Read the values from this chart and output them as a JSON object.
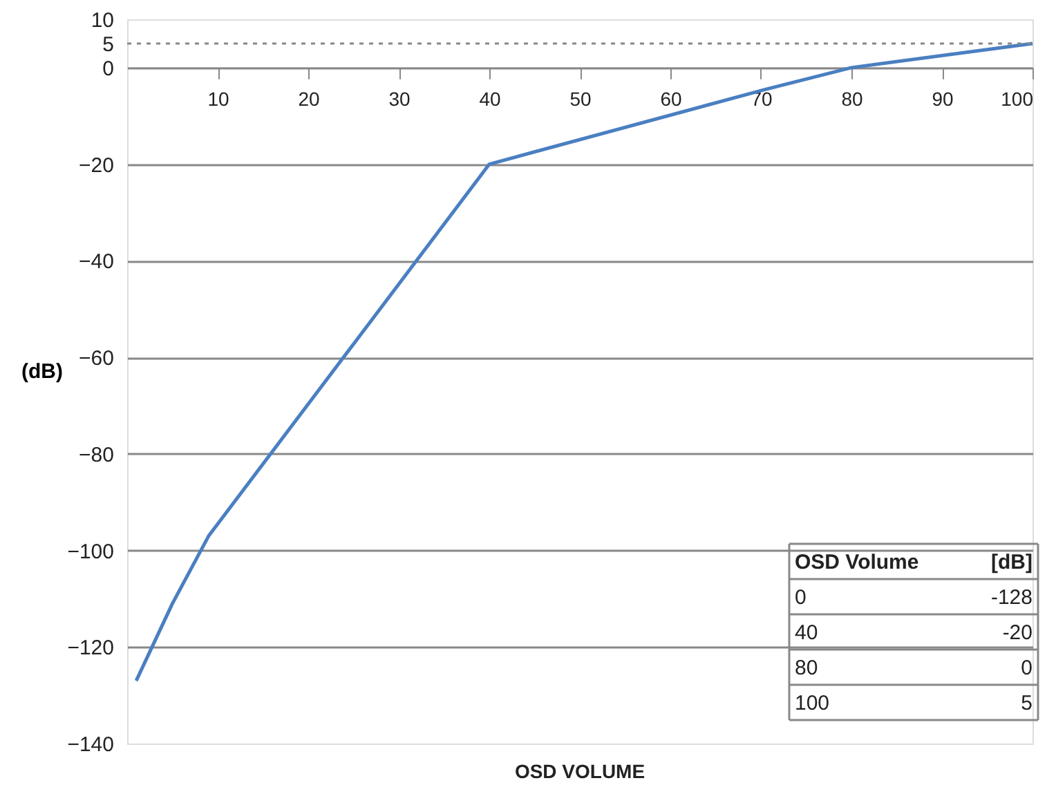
{
  "chart_data": {
    "type": "line",
    "xlabel": "OSD VOLUME",
    "ylabel": "(dB)",
    "x": [
      1,
      5,
      9,
      40,
      70.5,
      80,
      100
    ],
    "series": [
      {
        "color": "#4a7fc1",
        "values": [
          -127,
          -111,
          -97,
          -20,
          -4.5,
          0,
          5
        ]
      }
    ],
    "xlim": [
      0,
      100
    ],
    "xticks": [
      10,
      20,
      30,
      40,
      50,
      60,
      70,
      80,
      90,
      100
    ],
    "ylim": [
      -140,
      10
    ],
    "yticks": [
      -140,
      -120,
      -100,
      -80,
      -60,
      -40,
      -20,
      0,
      5,
      10
    ],
    "grid": "y",
    "line_style": "solid",
    "marker": "none",
    "ref_lines": [
      {
        "axis": "y",
        "value": 5,
        "line_style": "dotted",
        "color": "#888888"
      }
    ],
    "annotations": [
      "OSD Volume\t[dB]",
      "0\t-128",
      "40\t-20",
      "80\t0",
      "100\t5"
    ]
  }
}
